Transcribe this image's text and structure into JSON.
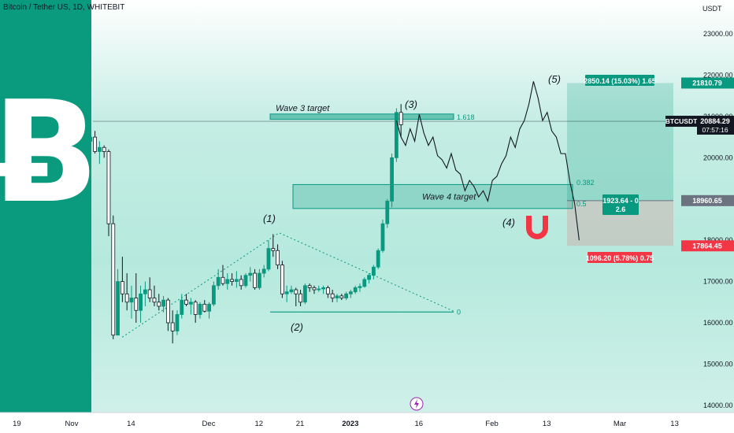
{
  "symbol_title": "Bitcoin / Tether US, 1D, WHITEBIT",
  "currency": "USDT",
  "chart_data": {
    "type": "candlestick",
    "y_ticks": [
      14000,
      15000,
      16000,
      17000,
      18000,
      19000,
      20000,
      21000,
      22000,
      23000
    ],
    "y_tick_labels": [
      "14000.00",
      "15000.00",
      "16000.00",
      "17000.00",
      "18000.00",
      "19000.00",
      "20000.00",
      "21000.00",
      "22000.00",
      "23000.00"
    ],
    "ylim": [
      13900,
      23900
    ],
    "x_ticks": [
      {
        "day": -12,
        "label": "19"
      },
      {
        "day": 0,
        "label": "Nov"
      },
      {
        "day": 13,
        "label": "14"
      },
      {
        "day": 30,
        "label": "Dec"
      },
      {
        "day": 41,
        "label": "12"
      },
      {
        "day": 50,
        "label": "21"
      },
      {
        "day": 61,
        "label": "2023",
        "bold": true
      },
      {
        "day": 76,
        "label": "16"
      },
      {
        "day": 92,
        "label": "Feb"
      },
      {
        "day": 104,
        "label": "13"
      },
      {
        "day": 120,
        "label": "Mar"
      },
      {
        "day": 132,
        "label": "13"
      }
    ],
    "candles": [
      [
        20400,
        20700,
        20300,
        20500
      ],
      [
        20500,
        20650,
        20100,
        20150
      ],
      [
        20150,
        20400,
        19850,
        20250
      ],
      [
        20250,
        20300,
        20000,
        20150
      ],
      [
        20150,
        20200,
        18100,
        18400
      ],
      [
        18400,
        18600,
        15600,
        15700
      ],
      [
        15700,
        17300,
        15750,
        17000
      ],
      [
        17000,
        17600,
        16500,
        16700
      ],
      [
        16700,
        17200,
        16300,
        16500
      ],
      [
        16500,
        16900,
        16100,
        16600
      ],
      [
        16600,
        17200,
        16000,
        16300
      ],
      [
        16300,
        16900,
        16000,
        16700
      ],
      [
        16700,
        17000,
        16400,
        16800
      ],
      [
        16800,
        17100,
        16500,
        16600
      ],
      [
        16600,
        16900,
        16400,
        16500
      ],
      [
        16500,
        16700,
        16300,
        16400
      ],
      [
        16400,
        16650,
        16250,
        16550
      ],
      [
        16550,
        16600,
        15800,
        16000
      ],
      [
        16000,
        16300,
        15500,
        15800
      ],
      [
        15800,
        16300,
        15700,
        16200
      ],
      [
        16200,
        16700,
        16100,
        16550
      ],
      [
        16550,
        16700,
        16400,
        16450
      ],
      [
        16450,
        16600,
        16200,
        16500
      ],
      [
        16500,
        16550,
        16000,
        16200
      ],
      [
        16200,
        16500,
        16100,
        16450
      ],
      [
        16450,
        16550,
        16250,
        16280
      ],
      [
        16280,
        16500,
        16100,
        16450
      ],
      [
        16450,
        17000,
        16400,
        16900
      ],
      [
        16900,
        17300,
        16800,
        17100
      ],
      [
        17100,
        17400,
        16900,
        16950
      ],
      [
        16950,
        17200,
        16800,
        17050
      ],
      [
        17050,
        17200,
        16900,
        17000
      ],
      [
        17000,
        17250,
        16850,
        17050
      ],
      [
        17050,
        17150,
        16800,
        16900
      ],
      [
        16900,
        17200,
        16850,
        17150
      ],
      [
        17150,
        17350,
        17000,
        17200
      ],
      [
        17200,
        17300,
        16800,
        16850
      ],
      [
        16850,
        17300,
        16800,
        17200
      ],
      [
        17200,
        17400,
        17100,
        17300
      ],
      [
        17300,
        18000,
        17250,
        17800
      ],
      [
        17800,
        18150,
        17600,
        17750
      ],
      [
        17750,
        17900,
        17300,
        17400
      ],
      [
        17400,
        17500,
        16600,
        16700
      ],
      [
        16700,
        16900,
        16500,
        16750
      ],
      [
        16750,
        16900,
        16700,
        16800
      ],
      [
        16800,
        16850,
        16400,
        16700
      ],
      [
        16700,
        16800,
        16400,
        16500
      ],
      [
        16500,
        16950,
        16450,
        16900
      ],
      [
        16900,
        16950,
        16750,
        16850
      ],
      [
        16850,
        16900,
        16700,
        16800
      ],
      [
        16800,
        16900,
        16750,
        16820
      ],
      [
        16820,
        16900,
        16700,
        16850
      ],
      [
        16850,
        16900,
        16600,
        16700
      ],
      [
        16700,
        16800,
        16500,
        16600
      ],
      [
        16600,
        16700,
        16500,
        16650
      ],
      [
        16650,
        16700,
        16550,
        16600
      ],
      [
        16600,
        16750,
        16550,
        16700
      ],
      [
        16700,
        16800,
        16600,
        16750
      ],
      [
        16750,
        16900,
        16700,
        16850
      ],
      [
        16850,
        16950,
        16750,
        16880
      ],
      [
        16880,
        17100,
        16850,
        17050
      ],
      [
        17050,
        17200,
        16950,
        17150
      ],
      [
        17150,
        17400,
        17050,
        17350
      ],
      [
        17350,
        17800,
        17300,
        17750
      ],
      [
        17750,
        18500,
        17700,
        18400
      ],
      [
        18400,
        19000,
        18300,
        18950
      ],
      [
        18950,
        20100,
        18800,
        20000
      ],
      [
        20000,
        21200,
        19900,
        21100
      ],
      [
        21100,
        21300,
        20500,
        20800
      ]
    ],
    "wave_labels": [
      "(1)",
      "(2)",
      "(3)",
      "(4)",
      "(5)"
    ],
    "fib_levels": [
      {
        "label": "1.618",
        "value": 20980
      },
      {
        "label": "0.382",
        "value": 19400
      },
      {
        "label": "0.5",
        "value": 18880
      },
      {
        "label": "0",
        "value": 16260
      }
    ],
    "zones": [
      {
        "label": "Wave 3 target",
        "low": 20930,
        "high": 21060
      },
      {
        "label": "Wave 4 target",
        "low": 18770,
        "high": 19350
      }
    ],
    "position": {
      "entry": 18960.65,
      "target": 21810.79,
      "stop": 17864.45,
      "profit_label": "2850.14 (15.03%) 1.65",
      "loss_label": "1096.20 (5.78%) 0.75",
      "mid_label_1": "1923.64 - 0",
      "mid_label_2": "2.6"
    },
    "price_badges": [
      {
        "label": "21810.79",
        "value": 21810.79,
        "color": "#089981"
      },
      {
        "label": "18960.65",
        "value": 18960.65,
        "color": "#6b7280"
      },
      {
        "label": "17864.45",
        "value": 17864.45,
        "color": "#f23645"
      }
    ],
    "current_price": {
      "ticker": "BTCUSDT",
      "price": "20884.29",
      "countdown": "07:57:16",
      "value": 20884.29
    },
    "projection": [
      [
        67,
        20900
      ],
      [
        68,
        20500
      ],
      [
        69,
        20300
      ],
      [
        70,
        20700
      ],
      [
        71,
        20400
      ],
      [
        72,
        21050
      ],
      [
        73,
        20600
      ],
      [
        74,
        20300
      ],
      [
        75,
        20500
      ],
      [
        76,
        20050
      ],
      [
        77,
        19950
      ],
      [
        78,
        19750
      ],
      [
        79,
        20100
      ],
      [
        80,
        19700
      ],
      [
        81,
        19600
      ],
      [
        82,
        19200
      ],
      [
        83,
        19450
      ],
      [
        84,
        19300
      ],
      [
        85,
        19050
      ],
      [
        86,
        19200
      ],
      [
        87,
        18950
      ],
      [
        88,
        19450
      ],
      [
        89,
        19550
      ],
      [
        90,
        19850
      ],
      [
        91,
        20050
      ],
      [
        92,
        20500
      ],
      [
        93,
        20250
      ],
      [
        94,
        20700
      ],
      [
        95,
        20900
      ],
      [
        96,
        21300
      ],
      [
        97,
        21850
      ],
      [
        98,
        21450
      ],
      [
        99,
        20900
      ],
      [
        100,
        21100
      ],
      [
        101,
        20650
      ],
      [
        102,
        20500
      ],
      [
        103,
        20100
      ],
      [
        104,
        20100
      ],
      [
        105,
        19400
      ],
      [
        106,
        18900
      ],
      [
        107,
        18000
      ]
    ],
    "colors": {
      "up": "#089981",
      "down": "#131722",
      "accent": "#089981",
      "loss": "#f23645"
    },
    "logo_color": "#0a9a7d",
    "magnet_color": "#f23645"
  }
}
